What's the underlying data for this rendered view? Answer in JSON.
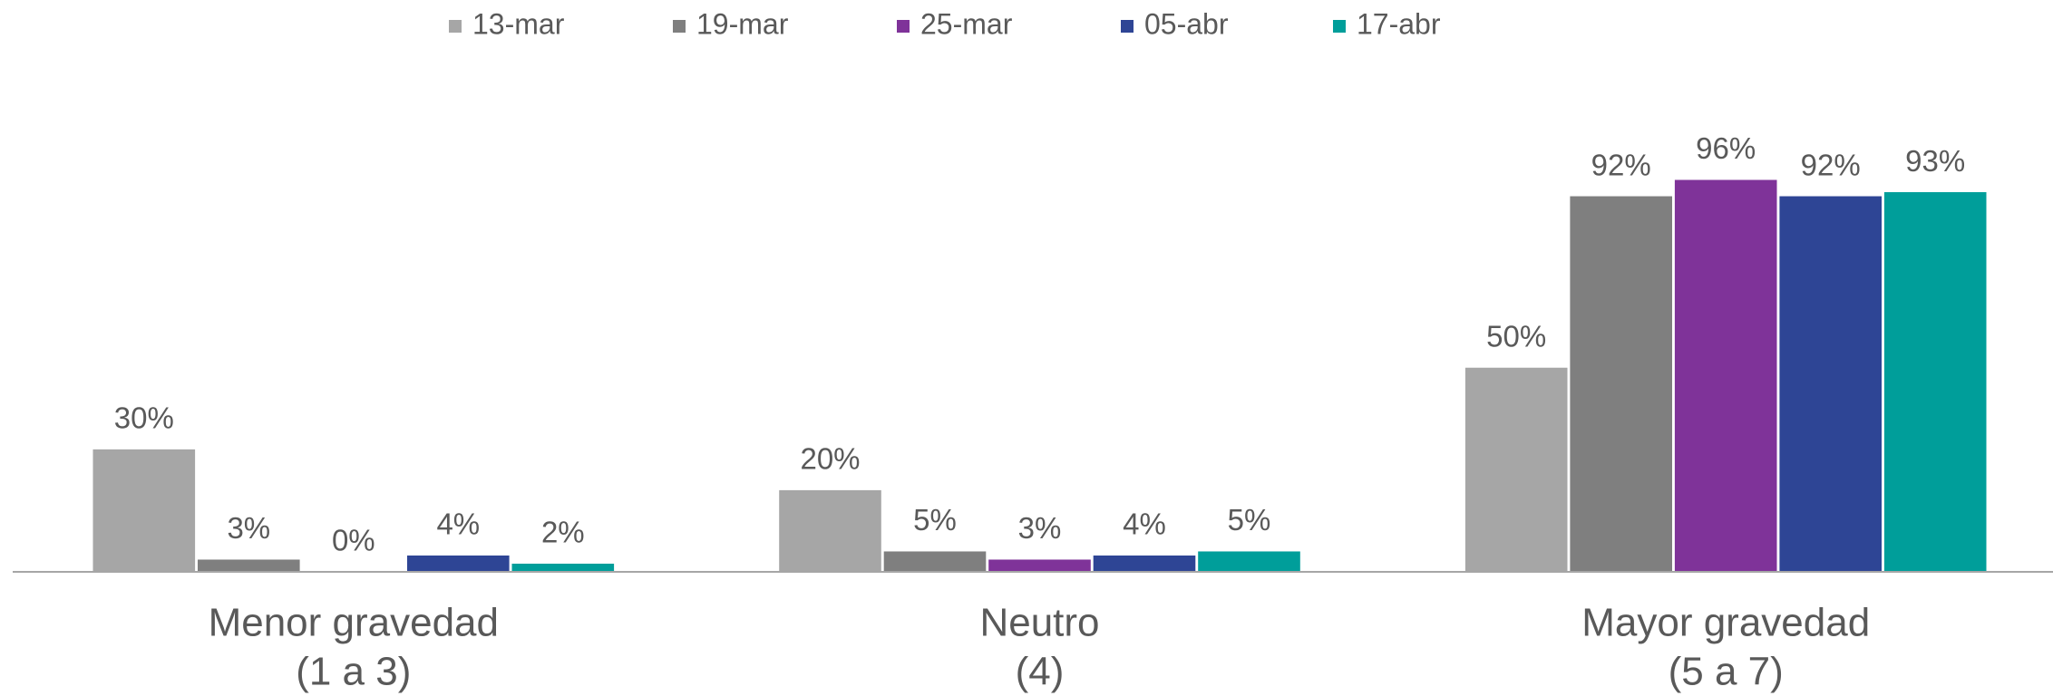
{
  "chart_data": {
    "type": "bar",
    "categories": [
      [
        "Menor gravedad",
        "(1 a 3)"
      ],
      [
        "Neutro",
        "(4)"
      ],
      [
        "Mayor gravedad",
        "(5 a 7)"
      ]
    ],
    "series": [
      {
        "name": "13-mar",
        "color": "#a6a6a6",
        "values": [
          30,
          20,
          50
        ],
        "value_labels": [
          "30%",
          "20%",
          "50%"
        ]
      },
      {
        "name": "19-mar",
        "color": "#7f7f7f",
        "values": [
          3,
          5,
          92
        ],
        "value_labels": [
          "3%",
          "5%",
          "92%"
        ]
      },
      {
        "name": "25-mar",
        "color": "#7f3399",
        "values": [
          0,
          3,
          96
        ],
        "value_labels": [
          "0%",
          "3%",
          "96%"
        ]
      },
      {
        "name": "05-abr",
        "color": "#2e4595",
        "values": [
          4,
          4,
          92
        ],
        "value_labels": [
          "4%",
          "4%",
          "92%"
        ]
      },
      {
        "name": "17-abr",
        "color": "#009e9a",
        "values": [
          2,
          5,
          93
        ],
        "value_labels": [
          "2%",
          "5%",
          "93%"
        ]
      }
    ],
    "ylim": [
      0,
      100
    ],
    "legend": "top"
  }
}
